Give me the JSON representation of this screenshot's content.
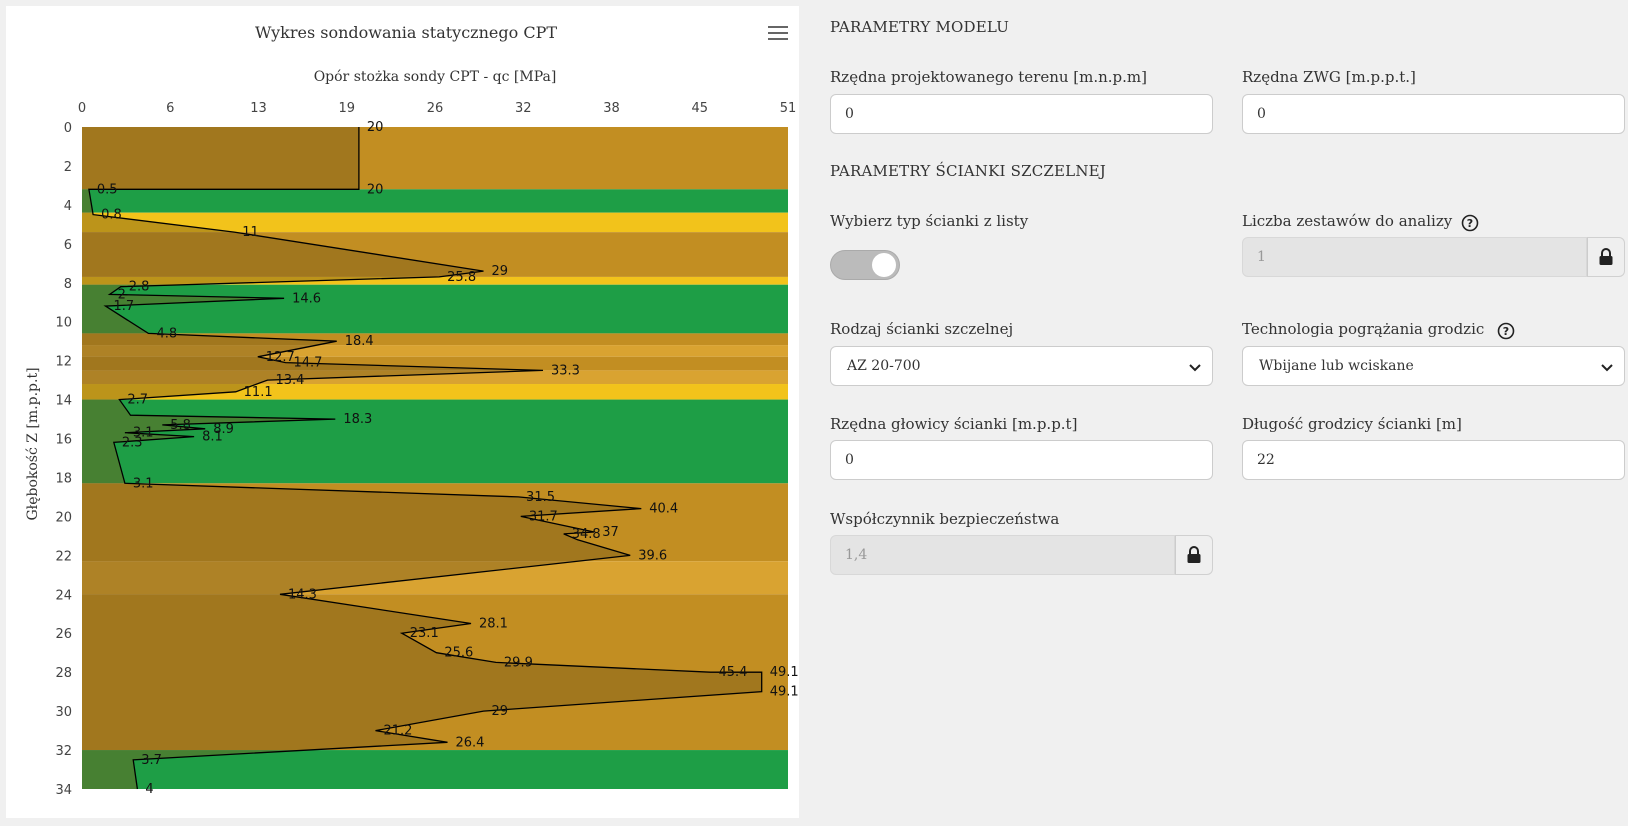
{
  "chart": {
    "menu_icon": "hamburger-menu-icon"
  },
  "chart_data": {
    "type": "line",
    "title": "Wykres sondowania statycznego CPT",
    "xlabel": "Opór stożka sondy CPT - qc [MPa]",
    "ylabel": "Głębokość Z [m.p.p.t]",
    "xlim": [
      0,
      51
    ],
    "ylim": [
      0,
      34
    ],
    "x_ticks": [
      "0",
      "6",
      "13",
      "19",
      "26",
      "32",
      "38",
      "45",
      "51"
    ],
    "y_ticks": [
      "0",
      "2",
      "4",
      "6",
      "8",
      "10",
      "12",
      "14",
      "16",
      "18",
      "20",
      "22",
      "24",
      "26",
      "28",
      "30",
      "32",
      "34"
    ],
    "layers": [
      {
        "from": 0,
        "to": 3.2,
        "color": "#c28e22"
      },
      {
        "from": 3.2,
        "to": 4.4,
        "color": "#1e9e46"
      },
      {
        "from": 4.4,
        "to": 5.4,
        "color": "#f2c31b"
      },
      {
        "from": 5.4,
        "to": 7.7,
        "color": "#c28e22"
      },
      {
        "from": 7.7,
        "to": 8.1,
        "color": "#f2c31b"
      },
      {
        "from": 8.1,
        "to": 10.6,
        "color": "#1e9e46"
      },
      {
        "from": 10.6,
        "to": 11.2,
        "color": "#c28e22"
      },
      {
        "from": 11.2,
        "to": 11.8,
        "color": "#d9a331"
      },
      {
        "from": 11.8,
        "to": 12.5,
        "color": "#c28e22"
      },
      {
        "from": 12.5,
        "to": 13.2,
        "color": "#d9a331"
      },
      {
        "from": 13.2,
        "to": 14.0,
        "color": "#f2c31b"
      },
      {
        "from": 14.0,
        "to": 18.3,
        "color": "#1e9e46"
      },
      {
        "from": 18.3,
        "to": 22.3,
        "color": "#c28e22"
      },
      {
        "from": 22.3,
        "to": 24.0,
        "color": "#d9a331"
      },
      {
        "from": 24.0,
        "to": 32.0,
        "color": "#c28e22"
      },
      {
        "from": 32.0,
        "to": 34.0,
        "color": "#1e9e46"
      }
    ],
    "points": [
      {
        "z": 0,
        "qc": 20,
        "label": "20"
      },
      {
        "z": 3.2,
        "qc": 20,
        "label": "20"
      },
      {
        "z": 3.2,
        "qc": 0.5,
        "label": "0.5"
      },
      {
        "z": 4.5,
        "qc": 0.8,
        "label": "0.8"
      },
      {
        "z": 5.4,
        "qc": 11,
        "label": "11"
      },
      {
        "z": 7.4,
        "qc": 29,
        "label": "29"
      },
      {
        "z": 7.7,
        "qc": 25.8,
        "label": "25.8"
      },
      {
        "z": 8.2,
        "qc": 2.8,
        "label": "2.8"
      },
      {
        "z": 8.6,
        "qc": 2,
        "label": "2"
      },
      {
        "z": 8.8,
        "qc": 14.6,
        "label": "14.6"
      },
      {
        "z": 9.2,
        "qc": 1.7,
        "label": "1.7"
      },
      {
        "z": 10.6,
        "qc": 4.8,
        "label": "4.8"
      },
      {
        "z": 11.0,
        "qc": 18.4,
        "label": "18.4"
      },
      {
        "z": 11.8,
        "qc": 12.7,
        "label": "12.7"
      },
      {
        "z": 12.1,
        "qc": 14.7,
        "label": "14.7"
      },
      {
        "z": 12.5,
        "qc": 33.3,
        "label": "33.3"
      },
      {
        "z": 13.0,
        "qc": 13.4,
        "label": "13.4"
      },
      {
        "z": 13.6,
        "qc": 11.1,
        "label": "11.1"
      },
      {
        "z": 14.0,
        "qc": 2.7,
        "label": "2.7"
      },
      {
        "z": 14.8,
        "qc": 3.5,
        "label": ""
      },
      {
        "z": 15.0,
        "qc": 18.3,
        "label": "18.3"
      },
      {
        "z": 15.3,
        "qc": 5.8,
        "label": "5.8"
      },
      {
        "z": 15.5,
        "qc": 8.9,
        "label": "8.9"
      },
      {
        "z": 15.7,
        "qc": 3.1,
        "label": "3.1"
      },
      {
        "z": 15.9,
        "qc": 8.1,
        "label": "8.1"
      },
      {
        "z": 16.2,
        "qc": 2.3,
        "label": "2.3"
      },
      {
        "z": 18.3,
        "qc": 3.1,
        "label": "3.1"
      },
      {
        "z": 19.0,
        "qc": 31.5,
        "label": "31.5"
      },
      {
        "z": 19.6,
        "qc": 40.4,
        "label": "40.4"
      },
      {
        "z": 20.0,
        "qc": 31.7,
        "label": "31.7"
      },
      {
        "z": 20.8,
        "qc": 37,
        "label": "37"
      },
      {
        "z": 20.9,
        "qc": 34.8,
        "label": "34.8"
      },
      {
        "z": 21.2,
        "qc": 35.8,
        "label": ""
      },
      {
        "z": 22.0,
        "qc": 39.6,
        "label": "39.6"
      },
      {
        "z": 24.0,
        "qc": 14.3,
        "label": "14.3"
      },
      {
        "z": 25.5,
        "qc": 28.1,
        "label": "28.1"
      },
      {
        "z": 26.0,
        "qc": 23.1,
        "label": "23.1"
      },
      {
        "z": 27.0,
        "qc": 25.6,
        "label": "25.6"
      },
      {
        "z": 27.5,
        "qc": 29.9,
        "label": "29.9"
      },
      {
        "z": 28.0,
        "qc": 45.4,
        "label": "45.4"
      },
      {
        "z": 28.0,
        "qc": 49.1,
        "label": "49.1"
      },
      {
        "z": 29.0,
        "qc": 49.1,
        "label": "49.1"
      },
      {
        "z": 30.0,
        "qc": 29,
        "label": "29"
      },
      {
        "z": 31.0,
        "qc": 21.2,
        "label": "21.2"
      },
      {
        "z": 31.6,
        "qc": 26.4,
        "label": "26.4"
      },
      {
        "z": 32.5,
        "qc": 3.7,
        "label": "3.7"
      },
      {
        "z": 34.0,
        "qc": 4,
        "label": "4"
      }
    ],
    "line_color": "#000000",
    "fill_color": "#7a5a1a"
  },
  "form": {
    "section_model": "PARAMETRY MODELU",
    "terrain_label": "Rzędna projektowanego terenu [m.n.p.m]",
    "terrain_value": "0",
    "zwg_label": "Rzędna ZWG [m.p.p.t.]",
    "zwg_value": "0",
    "section_wall": "PARAMETRY ŚCIANKI SZCZELNEJ",
    "choose_type_label": "Wybierz typ ścianki z listy",
    "sets_label": "Liczba zestawów do analizy",
    "sets_value": "1",
    "wall_type_label": "Rodzaj ścianki szczelnej",
    "wall_type_value": "AZ 20-700",
    "tech_label": "Technologia pogrążania grodzic",
    "tech_value": "Wbijane lub wciskane",
    "head_label": "Rzędna głowicy ścianki [m.p.p.t]",
    "head_value": "0",
    "length_label": "Długość grodzicy ścianki [m]",
    "length_value": "22",
    "safety_label": "Współczynnik bezpieczeństwa",
    "safety_value": "1,4"
  },
  "icons": {
    "lock": "lock-icon",
    "help": "question-circle-icon",
    "chevron": "chevron-down-icon"
  },
  "colors": {
    "background": "#f0f0f0",
    "clay": "#c28e22",
    "sand": "#f2c31b",
    "gravel": "#1e9e46",
    "loam": "#d9a331"
  }
}
